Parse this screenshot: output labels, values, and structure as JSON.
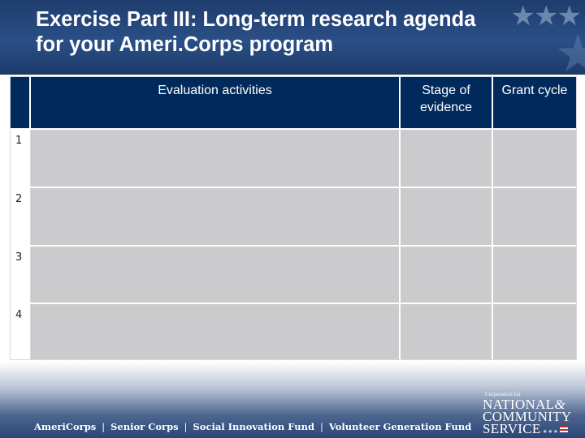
{
  "slide": {
    "title_line1": "Exercise Part III: Long-term research agenda",
    "title_line2": "for your Ameri.Corps program"
  },
  "table": {
    "columns": [
      "Evaluation activities",
      "Stage of evidence",
      "Grant cycle"
    ],
    "rows": [
      {
        "num": "1",
        "activity": "",
        "stage": "",
        "cycle": ""
      },
      {
        "num": "2",
        "activity": "",
        "stage": "",
        "cycle": ""
      },
      {
        "num": "3",
        "activity": "",
        "stage": "",
        "cycle": ""
      },
      {
        "num": "4",
        "activity": "",
        "stage": "",
        "cycle": ""
      }
    ],
    "header_color": "#002a5c",
    "cell_color": "#cbcbcd"
  },
  "footer": {
    "programs": [
      "AmeriCorps",
      "Senior Corps",
      "Social Innovation Fund",
      "Volunteer Generation Fund"
    ],
    "separator": "|"
  },
  "logo": {
    "small_text": "Corporation for",
    "line1": "NATIONAL",
    "amp": "&",
    "line2": "COMMUNITY",
    "line3": "SERVICE",
    "stars": "★★★"
  },
  "colors": {
    "top_band": "#1f3d6e",
    "bottom_band": "#2b4675"
  }
}
